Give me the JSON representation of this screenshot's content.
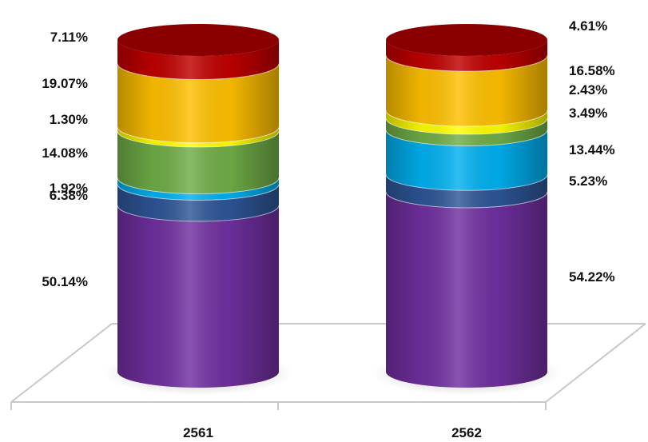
{
  "chart_data": {
    "type": "bar",
    "subtype": "stacked-100-cylinder-3d",
    "categories": [
      "2561",
      "2562"
    ],
    "series": [
      {
        "color": "#7030A0",
        "values": [
          50.14,
          54.22
        ],
        "labels": [
          "50.14%",
          "54.22%"
        ]
      },
      {
        "color": "#2E5597",
        "values": [
          6.38,
          5.23
        ],
        "labels": [
          "6.38%",
          "5.23%"
        ]
      },
      {
        "color": "#00B0F0",
        "values": [
          1.92,
          13.44
        ],
        "labels": [
          "1.92%",
          "13.44%"
        ]
      },
      {
        "color": "#70AD47",
        "values": [
          14.08,
          3.49
        ],
        "labels": [
          "14.08%",
          "3.49%"
        ]
      },
      {
        "color": "#FFFF00",
        "values": [
          1.3,
          2.43
        ],
        "labels": [
          "1.30%",
          "2.43%"
        ]
      },
      {
        "color": "#FFC000",
        "values": [
          19.07,
          16.58
        ],
        "labels": [
          "19.07%",
          "16.58%"
        ]
      },
      {
        "color": "#C00000",
        "values": [
          7.11,
          4.61
        ],
        "labels": [
          "7.11%",
          "4.61%"
        ]
      }
    ],
    "ylim": [
      0,
      100
    ],
    "legend": "none",
    "grid": false
  }
}
